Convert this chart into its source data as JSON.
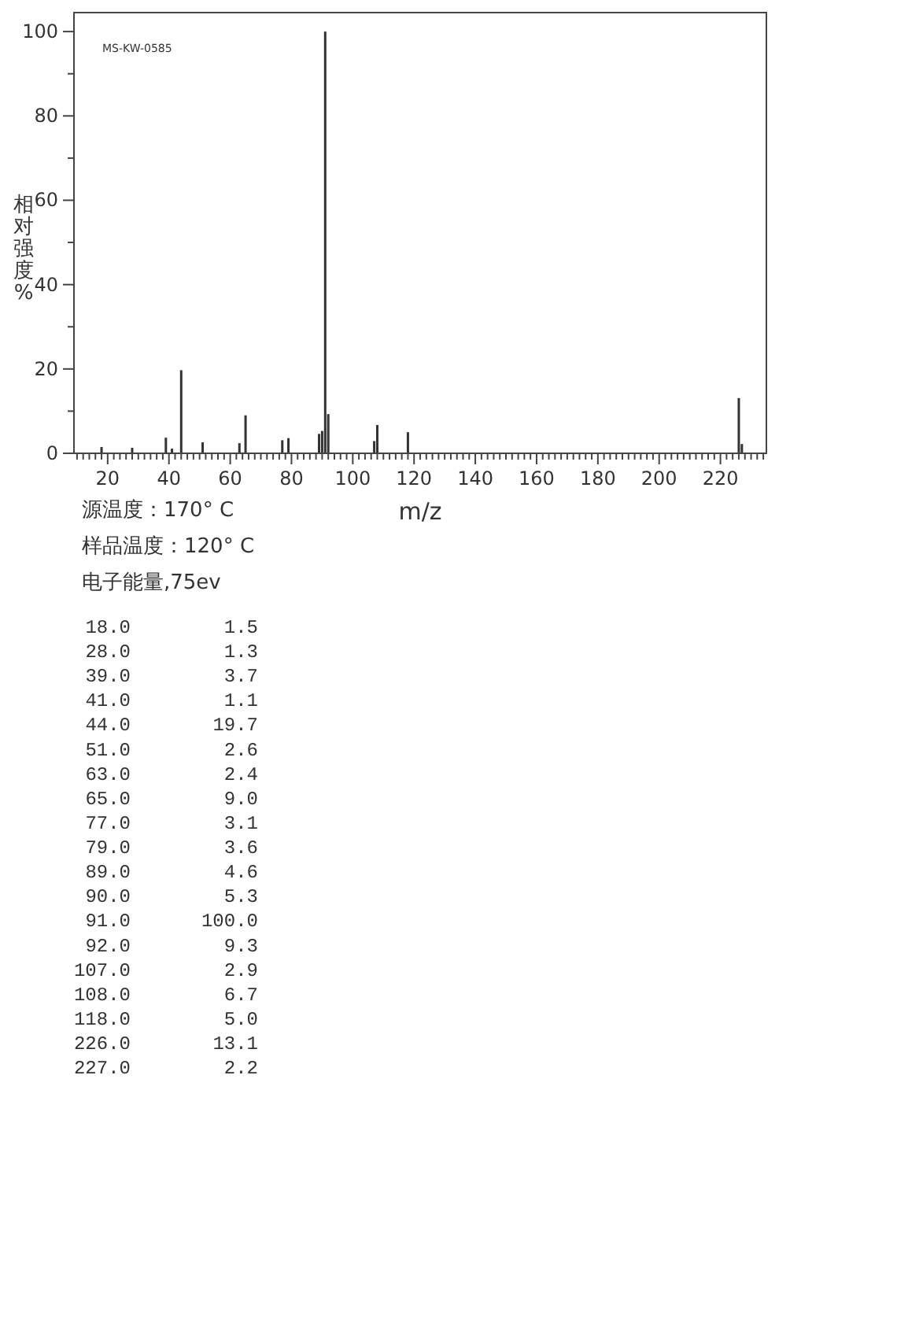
{
  "chart_data": {
    "type": "bar",
    "xlabel": "m/z",
    "ylabel": "相对强度%",
    "annotations": [
      "MS-KW-0585",
      "源温度：170° C",
      "样品温度：120° C",
      "电子能量,75ev",
      "18.0",
      "1.5",
      "28.0",
      "1.3",
      "39.0",
      "3.7",
      "41.0",
      "1.1",
      "44.0",
      "19.7",
      "51.0",
      "2.6",
      "63.0",
      "2.4",
      "65.0",
      "9.0",
      "77.0",
      "3.1",
      "79.0",
      "3.6",
      "89.0",
      "4.6",
      "90.0",
      "5.3",
      "91.0",
      "100.0",
      "92.0",
      "9.3",
      "107.0",
      "2.9",
      "108.0",
      "6.7",
      "118.0",
      "5.0",
      "226.0",
      "13.1",
      "227.0",
      "2.2"
    ],
    "x": [
      18,
      28,
      39,
      41,
      44,
      51,
      63,
      65,
      77,
      79,
      89,
      90,
      91,
      92,
      107,
      108,
      118,
      226,
      227
    ],
    "values": [
      1.5,
      1.3,
      3.7,
      1.1,
      19.7,
      2.6,
      2.4,
      9.0,
      3.1,
      3.6,
      4.6,
      5.3,
      100.0,
      9.3,
      2.9,
      6.7,
      5.0,
      13.1,
      2.2
    ],
    "color": "#333333",
    "xlim": [
      9,
      235
    ],
    "xticks": [
      {
        "value": 10,
        "label": null
      },
      {
        "value": 12,
        "label": null
      },
      {
        "value": 14,
        "label": null
      },
      {
        "value": 16,
        "label": null
      },
      {
        "value": 18,
        "label": null
      },
      20,
      {
        "value": 22,
        "label": null
      },
      {
        "value": 24,
        "label": null
      },
      {
        "value": 26,
        "label": null
      },
      {
        "value": 28,
        "label": null
      },
      {
        "value": 30,
        "label": null
      },
      {
        "value": 32,
        "label": null
      },
      {
        "value": 34,
        "label": null
      },
      {
        "value": 36,
        "label": null
      },
      {
        "value": 38,
        "label": null
      },
      40,
      {
        "value": 42,
        "label": null
      },
      {
        "value": 44,
        "label": null
      },
      {
        "value": 46,
        "label": null
      },
      {
        "value": 48,
        "label": null
      },
      {
        "value": 50,
        "label": null
      },
      {
        "value": 52,
        "label": null
      },
      {
        "value": 54,
        "label": null
      },
      {
        "value": 56,
        "label": null
      },
      {
        "value": 58,
        "label": null
      },
      60,
      {
        "value": 62,
        "label": null
      },
      {
        "value": 64,
        "label": null
      },
      {
        "value": 66,
        "label": null
      },
      {
        "value": 68,
        "label": null
      },
      {
        "value": 70,
        "label": null
      },
      {
        "value": 72,
        "label": null
      },
      {
        "value": 74,
        "label": null
      },
      {
        "value": 76,
        "label": null
      },
      {
        "value": 78,
        "label": null
      },
      80,
      {
        "value": 82,
        "label": null
      },
      {
        "value": 84,
        "label": null
      },
      {
        "value": 86,
        "label": null
      },
      {
        "value": 88,
        "label": null
      },
      {
        "value": 90,
        "label": null
      },
      {
        "value": 92,
        "label": null
      },
      {
        "value": 94,
        "label": null
      },
      {
        "value": 96,
        "label": null
      },
      {
        "value": 98,
        "label": null
      },
      100,
      {
        "value": 102,
        "label": null
      },
      {
        "value": 104,
        "label": null
      },
      {
        "value": 106,
        "label": null
      },
      {
        "value": 108,
        "label": null
      },
      {
        "value": 110,
        "label": null
      },
      {
        "value": 112,
        "label": null
      },
      {
        "value": 114,
        "label": null
      },
      {
        "value": 116,
        "label": null
      },
      {
        "value": 118,
        "label": null
      },
      120,
      {
        "value": 122,
        "label": null
      },
      {
        "value": 124,
        "label": null
      },
      {
        "value": 126,
        "label": null
      },
      {
        "value": 128,
        "label": null
      },
      {
        "value": 130,
        "label": null
      },
      {
        "value": 132,
        "label": null
      },
      {
        "value": 134,
        "label": null
      },
      {
        "value": 136,
        "label": null
      },
      {
        "value": 138,
        "label": null
      },
      140,
      {
        "value": 142,
        "label": null
      },
      {
        "value": 144,
        "label": null
      },
      {
        "value": 146,
        "label": null
      },
      {
        "value": 148,
        "label": null
      },
      {
        "value": 150,
        "label": null
      },
      {
        "value": 152,
        "label": null
      },
      {
        "value": 154,
        "label": null
      },
      {
        "value": 156,
        "label": null
      },
      {
        "value": 158,
        "label": null
      },
      160,
      {
        "value": 162,
        "label": null
      },
      {
        "value": 164,
        "label": null
      },
      {
        "value": 166,
        "label": null
      },
      {
        "value": 168,
        "label": null
      },
      {
        "value": 170,
        "label": null
      },
      {
        "value": 172,
        "label": null
      },
      {
        "value": 174,
        "label": null
      },
      {
        "value": 176,
        "label": null
      },
      {
        "value": 178,
        "label": null
      },
      180,
      {
        "value": 182,
        "label": null
      },
      {
        "value": 184,
        "label": null
      },
      {
        "value": 186,
        "label": null
      },
      {
        "value": 188,
        "label": null
      },
      {
        "value": 190,
        "label": null
      },
      {
        "value": 192,
        "label": null
      },
      {
        "value": 194,
        "label": null
      },
      {
        "value": 196,
        "label": null
      },
      {
        "value": 198,
        "label": null
      },
      200,
      {
        "value": 202,
        "label": null
      },
      {
        "value": 204,
        "label": null
      },
      {
        "value": 206,
        "label": null
      },
      {
        "value": 208,
        "label": null
      },
      {
        "value": 210,
        "label": null
      },
      {
        "value": 212,
        "label": null
      },
      {
        "value": 214,
        "label": null
      },
      {
        "value": 216,
        "label": null
      },
      {
        "value": 218,
        "label": null
      },
      220,
      {
        "value": 222,
        "label": null
      },
      {
        "value": 224,
        "label": null
      },
      {
        "value": 226,
        "label": null
      },
      {
        "value": 228,
        "label": null
      },
      {
        "value": 230,
        "label": null
      },
      {
        "value": 232,
        "label": null
      },
      {
        "value": 234,
        "label": null
      }
    ],
    "ylim": [
      0,
      104.5
    ],
    "yticks": [
      0,
      {
        "value": 10,
        "label": null
      },
      20,
      {
        "value": 30,
        "label": null
      },
      40,
      {
        "value": 50,
        "label": null
      },
      60,
      {
        "value": 70,
        "label": null
      },
      80,
      {
        "value": 90,
        "label": null
      },
      100
    ],
    "grid": false
  }
}
